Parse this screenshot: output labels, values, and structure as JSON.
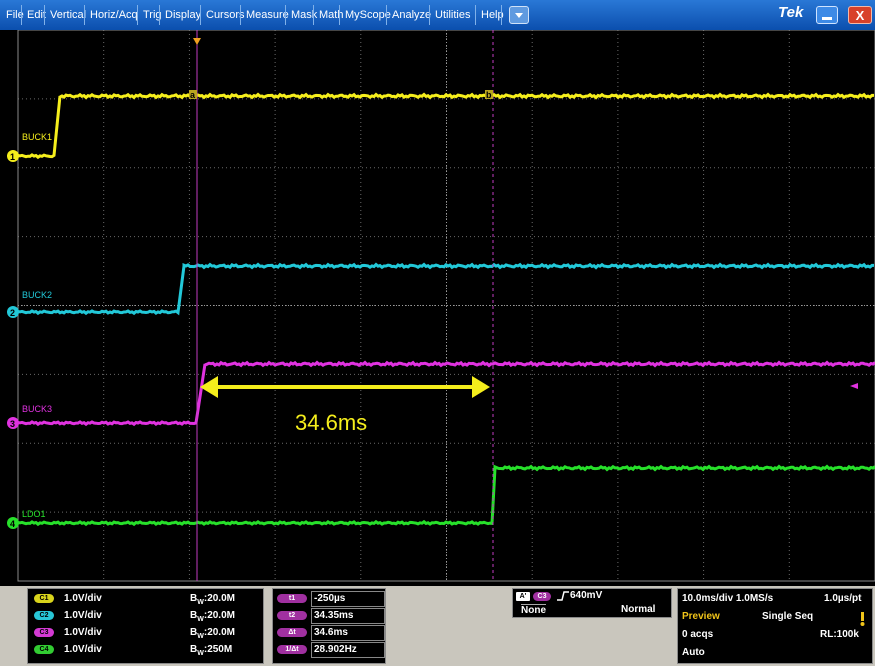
{
  "menu": [
    "File",
    "Edit",
    "Vertical",
    "Horiz/Acq",
    "Trig",
    "Display",
    "Cursors",
    "Measure",
    "Mask",
    "Math",
    "MyScope",
    "Analyze",
    "Utilities",
    "Help"
  ],
  "brand": "Tek",
  "window": {
    "minimize_icon": "minimize-icon",
    "close_icon": "close-icon",
    "close_label": "X",
    "dropdown_icon": "dropdown-arrow-icon"
  },
  "colors": {
    "ch1": "#f5ee1c",
    "ch2": "#22c8d8",
    "ch3": "#e032e0",
    "ch4": "#27e02a",
    "accent": "#1e64c8"
  },
  "channels": [
    {
      "num": "1",
      "label": "BUCK1",
      "tag": "C1",
      "vdiv": "1.0V/div",
      "bw": "20.0M"
    },
    {
      "num": "2",
      "label": "BUCK2",
      "tag": "C2",
      "vdiv": "1.0V/div",
      "bw": "20.0M"
    },
    {
      "num": "3",
      "label": "BUCK3",
      "tag": "C3",
      "vdiv": "1.0V/div",
      "bw": "20.0M"
    },
    {
      "num": "4",
      "label": "LDO1",
      "tag": "C4",
      "vdiv": "1.0V/div",
      "bw": "250M"
    }
  ],
  "bw_prefix": "B",
  "bw_sub": "W",
  "bw_sep": ":",
  "cursor_a": "a",
  "cursor_b": "b",
  "annotation": "34.6ms",
  "cursors": {
    "t1_tag": "t1",
    "t1": "-250µs",
    "t2_tag": "t2",
    "t2": "34.35ms",
    "dt_tag": "Δt",
    "dt": "34.6ms",
    "inv_tag": "1/Δt",
    "inv": "28.902Hz"
  },
  "trigger": {
    "mode_tag": "A'",
    "src": "C3",
    "level": "640mV",
    "coupling": "None",
    "type": "Normal"
  },
  "acq": {
    "timebase": "10.0ms/div 1.0MS/s",
    "res": "1.0µs/pt",
    "state": "Preview",
    "seq": "Single Seq",
    "acqs": "0 acqs",
    "rl": "RL:100k",
    "auto": "Auto"
  }
}
